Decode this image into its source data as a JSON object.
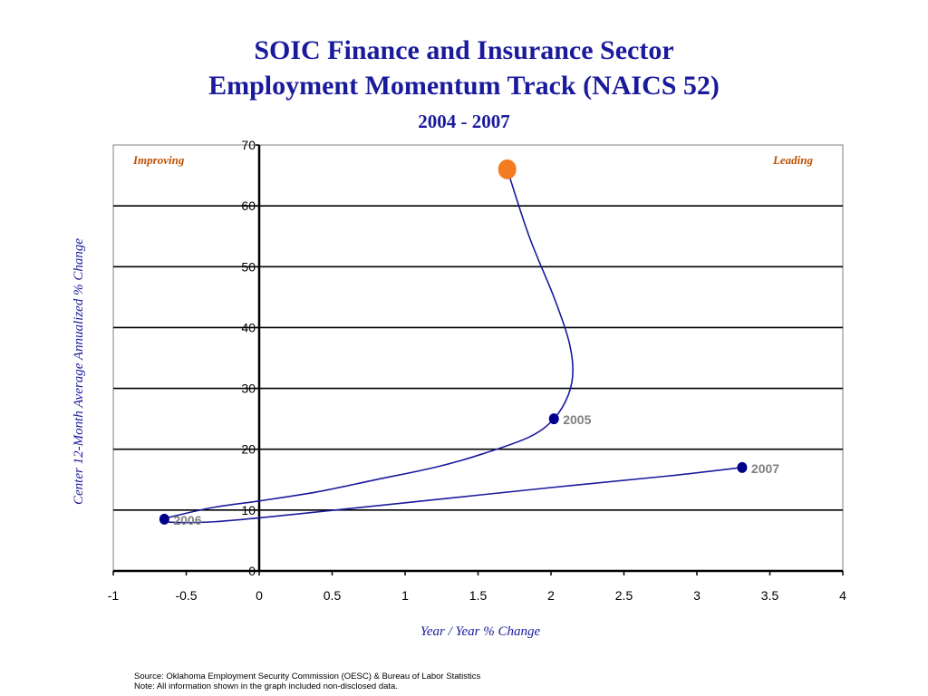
{
  "header": {
    "title_line1": "SOIC Finance and Insurance Sector",
    "title_line2": "Employment Momentum Track (NAICS 52)",
    "subtitle": "2004 - 2007"
  },
  "footer": {
    "source": "Source:  Oklahoma Employment Security Commission (OESC) & Bureau of Labor Statistics",
    "note": "Note: All information shown in the graph included non-disclosed data."
  },
  "chart_data": {
    "type": "line",
    "xlabel": "Year / Year % Change",
    "ylabel": "Center 12-Month Average Annualized % Change",
    "xlim": [
      -1,
      4
    ],
    "ylim": [
      0,
      70
    ],
    "x_ticks": [
      -1,
      -0.5,
      0,
      0.5,
      1,
      1.5,
      2,
      2.5,
      3,
      3.5,
      4
    ],
    "x_tick_labels": [
      "-1",
      "-0.5",
      "0",
      "0.5",
      "1",
      "1.5",
      "2",
      "2.5",
      "3",
      "3.5",
      "4"
    ],
    "y_ticks": [
      0,
      10,
      20,
      30,
      40,
      50,
      60,
      70
    ],
    "y_tick_labels": [
      "0",
      "10",
      "20",
      "30",
      "40",
      "50",
      "60",
      "70"
    ],
    "grid": "horizontal",
    "quadrant_labels": {
      "top_left": "Improving",
      "top_right": "Leading"
    },
    "points": [
      {
        "x": 1.7,
        "y": 66,
        "label": "",
        "marker": "start"
      },
      {
        "x": 2.02,
        "y": 25,
        "label": "2005"
      },
      {
        "x": -0.65,
        "y": 8.5,
        "label": "2006"
      },
      {
        "x": 3.31,
        "y": 17,
        "label": "2007"
      }
    ],
    "path": [
      {
        "x": 1.7,
        "y": 66
      },
      {
        "x": 1.85,
        "y": 55
      },
      {
        "x": 2.02,
        "y": 45
      },
      {
        "x": 2.12,
        "y": 38
      },
      {
        "x": 2.15,
        "y": 33
      },
      {
        "x": 2.12,
        "y": 29
      },
      {
        "x": 2.02,
        "y": 25
      },
      {
        "x": 1.85,
        "y": 22
      },
      {
        "x": 1.5,
        "y": 19
      },
      {
        "x": 1.2,
        "y": 17
      },
      {
        "x": 0.8,
        "y": 15
      },
      {
        "x": 0.4,
        "y": 13
      },
      {
        "x": 0.0,
        "y": 11.5
      },
      {
        "x": -0.3,
        "y": 10.5
      },
      {
        "x": -0.55,
        "y": 9.2
      },
      {
        "x": -0.65,
        "y": 8.5
      },
      {
        "x": -0.6,
        "y": 8.0
      },
      {
        "x": -0.3,
        "y": 8.1
      },
      {
        "x": 0.2,
        "y": 9.2
      },
      {
        "x": 1.0,
        "y": 11.2
      },
      {
        "x": 2.0,
        "y": 13.7
      },
      {
        "x": 2.8,
        "y": 15.6
      },
      {
        "x": 3.31,
        "y": 17
      }
    ],
    "colors": {
      "title": "#1a1a9c",
      "line": "#1a1a9c",
      "marker": "#00008b",
      "start_marker": "#f47c20",
      "quadrant_label": "#c05000",
      "point_label": "#808080",
      "grid": "#000000",
      "frame": "#808080"
    }
  }
}
